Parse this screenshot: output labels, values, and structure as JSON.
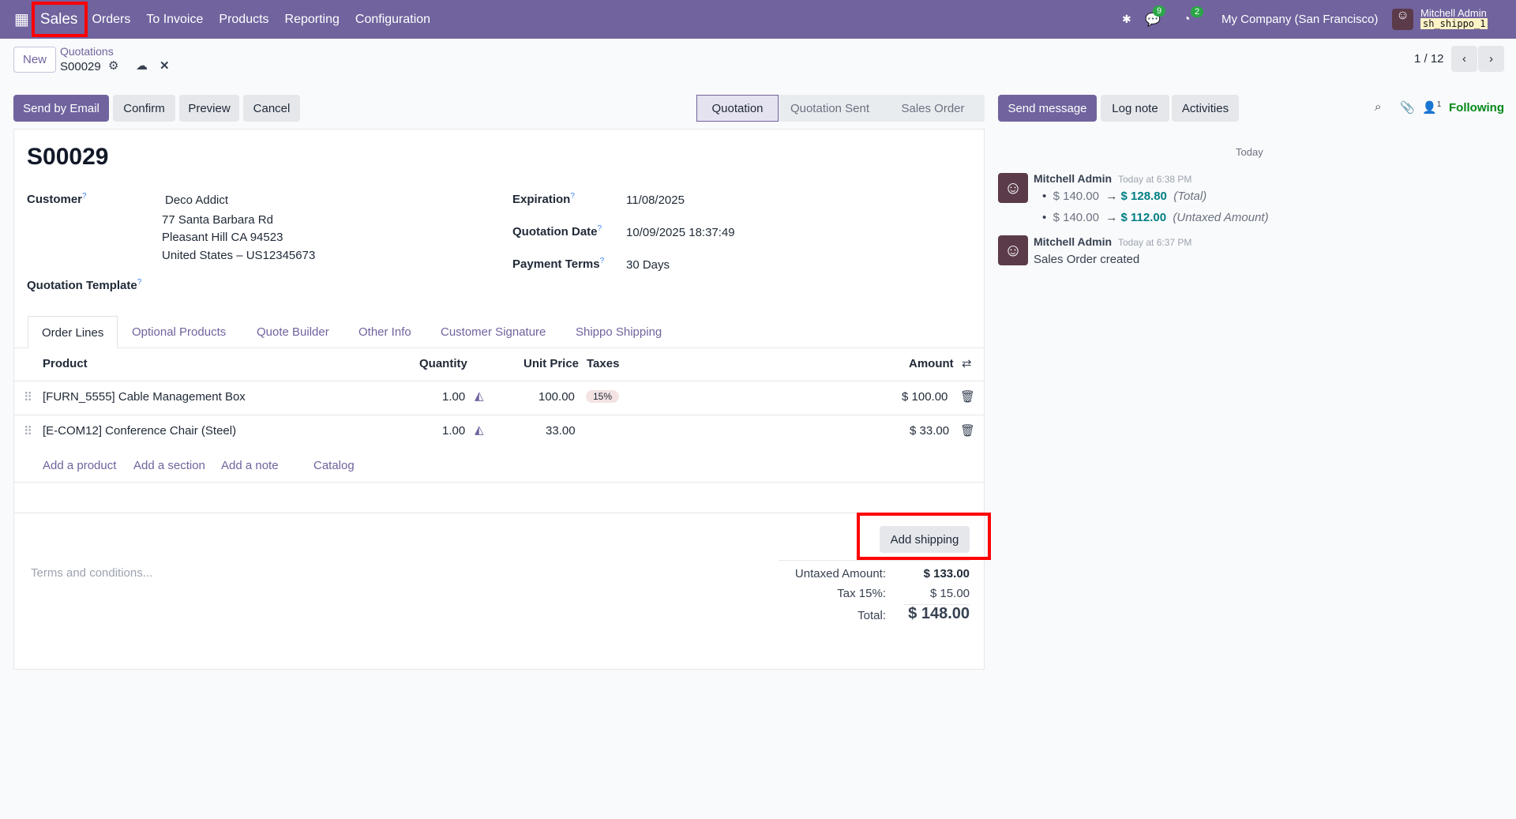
{
  "navbar": {
    "app": "Sales",
    "menus": [
      "Orders",
      "To Invoice",
      "Products",
      "Reporting",
      "Configuration"
    ],
    "chat_count": "9",
    "activity_count": "2",
    "company": "My Company (San Francisco)",
    "user": "Mitchell Admin",
    "database": "sh_shippo_1"
  },
  "control": {
    "new": "New",
    "breadcrumb": "Quotations",
    "record": "S00029",
    "pager": "1 / 12"
  },
  "actions": {
    "send_email": "Send by Email",
    "confirm": "Confirm",
    "preview": "Preview",
    "cancel": "Cancel"
  },
  "status": {
    "steps": [
      "Quotation",
      "Quotation Sent",
      "Sales Order"
    ],
    "active": "Quotation"
  },
  "form": {
    "title": "S00029",
    "customer_label": "Customer",
    "customer_name": "Deco Addict",
    "addr1": "77 Santa Barbara Rd",
    "addr2": "Pleasant Hill CA 94523",
    "addr3": "United States – US12345673",
    "template_label": "Quotation Template",
    "expiration_label": "Expiration",
    "expiration": "11/08/2025",
    "date_label": "Quotation Date",
    "date": "10/09/2025 18:37:49",
    "terms_label": "Payment Terms",
    "terms": "30 Days"
  },
  "tabs": [
    "Order Lines",
    "Optional Products",
    "Quote Builder",
    "Other Info",
    "Customer Signature",
    "Shippo Shipping"
  ],
  "table": {
    "headers": {
      "product": "Product",
      "quantity": "Quantity",
      "price": "Unit Price",
      "taxes": "Taxes",
      "amount": "Amount"
    },
    "rows": [
      {
        "product": "[FURN_5555] Cable Management Box",
        "qty": "1.00",
        "price": "100.00",
        "tax": "15%",
        "amount": "$ 100.00"
      },
      {
        "product": "[E-COM12] Conference Chair (Steel)",
        "qty": "1.00",
        "price": "33.00",
        "tax": "",
        "amount": "$ 33.00"
      }
    ],
    "add_product": "Add a product",
    "add_section": "Add a section",
    "add_note": "Add a note",
    "catalog": "Catalog"
  },
  "footer": {
    "add_shipping": "Add shipping",
    "terms_placeholder": "Terms and conditions...",
    "untaxed_label": "Untaxed Amount:",
    "untaxed": "$ 133.00",
    "tax_label": "Tax 15%:",
    "tax": "$ 15.00",
    "total_label": "Total:",
    "total": "$ 148.00"
  },
  "chatter": {
    "send_message": "Send message",
    "log_note": "Log note",
    "activities": "Activities",
    "followers": "1",
    "following": "Following",
    "date_sep": "Today",
    "messages": [
      {
        "author": "Mitchell Admin",
        "time": "Today at 6:38 PM",
        "changes": [
          {
            "old": "$ 140.00",
            "new": "$ 128.80",
            "field": "(Total)"
          },
          {
            "old": "$ 140.00",
            "new": "$ 112.00",
            "field": "(Untaxed Amount)"
          }
        ]
      },
      {
        "author": "Mitchell Admin",
        "time": "Today at 6:37 PM",
        "body": "Sales Order created"
      }
    ]
  },
  "colors": {
    "brand": "#71639e",
    "highlight": "#ff0000",
    "following": "#008818",
    "link_value": "#017e84"
  }
}
